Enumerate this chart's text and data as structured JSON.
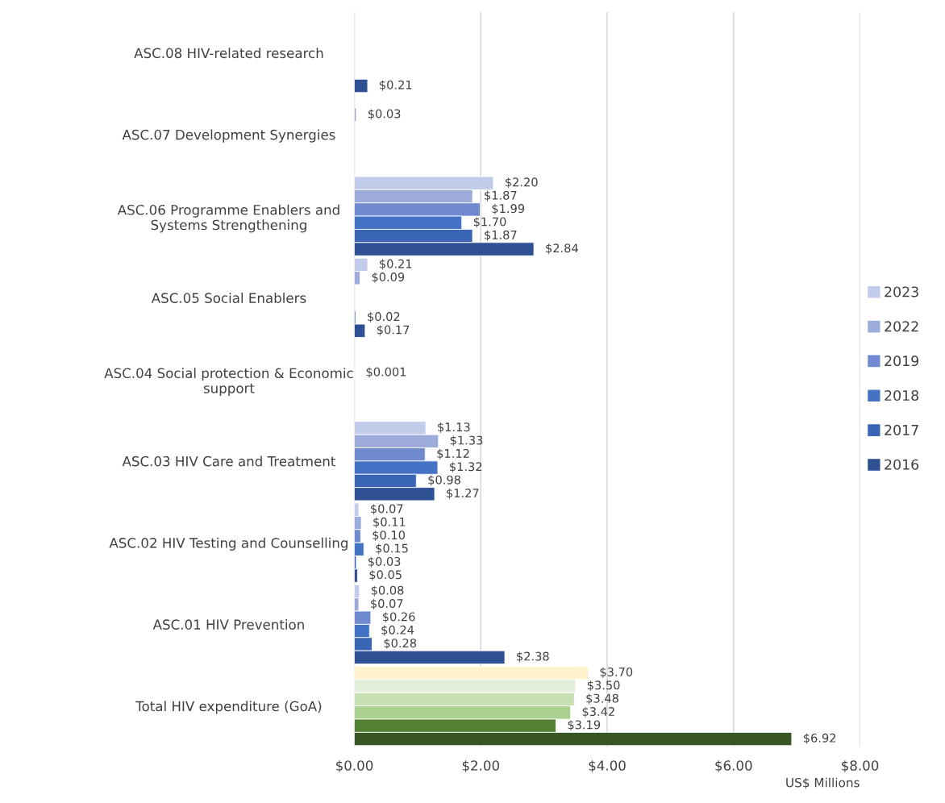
{
  "chart_data": {
    "type": "bar",
    "orientation": "horizontal",
    "xlabel": "US$ Millions",
    "categories": [
      "ASC.08 HIV-related research",
      "ASC.07 Development Synergies",
      "ASC.06 Programme Enablers and Systems Strengthening",
      "ASC.05 Social Enablers",
      "ASC.04 Social protection & Economic support",
      "ASC.03 HIV Care and Treatment",
      "ASC.02 HIV Testing and Counselling",
      "ASC.01 HIV Prevention",
      "Total HIV expenditure (GoA)"
    ],
    "series": [
      {
        "name": "2023",
        "color": "#c2cbe9",
        "colors": [
          "#c2cbe9",
          "#c2cbe9",
          "#c2cbe9",
          "#c2cbe9",
          "#c2cbe9",
          "#c2cbe9",
          "#c2cbe9",
          "#c2cbe9",
          "#fff2cc"
        ],
        "values": [
          null,
          null,
          2.2,
          0.21,
          null,
          1.13,
          0.07,
          0.08,
          3.7
        ],
        "value_labels": [
          null,
          null,
          "$2.20",
          "$0.21",
          null,
          "$1.13",
          "$0.07",
          "$0.08",
          "$3.70"
        ]
      },
      {
        "name": "2022",
        "color": "#9dabdb",
        "colors": [
          "#9dabdb",
          "#9dabdb",
          "#9dabdb",
          "#9dabdb",
          "#9dabdb",
          "#9dabdb",
          "#9dabdb",
          "#9dabdb",
          "#e2efda"
        ],
        "values": [
          null,
          0.03,
          1.87,
          0.09,
          null,
          1.33,
          0.11,
          0.07,
          3.5
        ],
        "value_labels": [
          null,
          "$0.03",
          "$1.87",
          "$0.09",
          null,
          "$1.33",
          "$0.11",
          "$0.07",
          "$3.50"
        ]
      },
      {
        "name": "2019",
        "color": "#6f8ad0",
        "colors": [
          "#6f8ad0",
          "#6f8ad0",
          "#6f8ad0",
          "#6f8ad0",
          "#6f8ad0",
          "#6f8ad0",
          "#6f8ad0",
          "#6f8ad0",
          "#c6e0b4"
        ],
        "values": [
          null,
          null,
          1.99,
          null,
          0.001,
          1.12,
          0.1,
          0.26,
          3.48
        ],
        "value_labels": [
          null,
          null,
          "$1.99",
          null,
          "$0.001",
          "$1.12",
          "$0.10",
          "$0.26",
          "$3.48"
        ]
      },
      {
        "name": "2018",
        "color": "#4472c4",
        "colors": [
          "#4472c4",
          "#4472c4",
          "#4472c4",
          "#4472c4",
          "#4472c4",
          "#4472c4",
          "#4472c4",
          "#4472c4",
          "#a9d08e"
        ],
        "values": [
          null,
          null,
          1.7,
          null,
          null,
          1.32,
          0.15,
          0.24,
          3.42
        ],
        "value_labels": [
          null,
          null,
          "$1.70",
          null,
          null,
          "$1.32",
          "$0.15",
          "$0.24",
          "$3.42"
        ]
      },
      {
        "name": "2017",
        "color": "#3a64b4",
        "colors": [
          "#3a64b4",
          "#3a64b4",
          "#3a64b4",
          "#3a64b4",
          "#3a64b4",
          "#3a64b4",
          "#3a64b4",
          "#3a64b4",
          "#548235"
        ],
        "values": [
          null,
          null,
          1.87,
          0.02,
          null,
          0.98,
          0.03,
          0.28,
          3.19
        ],
        "value_labels": [
          null,
          null,
          "$1.87",
          "$0.02",
          null,
          "$0.98",
          "$0.03",
          "$0.28",
          "$3.19"
        ]
      },
      {
        "name": "2016",
        "color": "#2f5093",
        "colors": [
          "#2f5093",
          "#2f5093",
          "#2f5093",
          "#2f5093",
          "#2f5093",
          "#2f5093",
          "#2f5093",
          "#2f5093",
          "#375623"
        ],
        "values": [
          0.21,
          null,
          2.84,
          0.17,
          null,
          1.27,
          0.05,
          2.38,
          6.92
        ],
        "value_labels": [
          "$0.21",
          null,
          "$2.84",
          "$0.17",
          null,
          "$1.27",
          "$0.05",
          "$2.38",
          "$6.92"
        ]
      }
    ],
    "xlim": [
      0,
      8
    ],
    "xticks": [
      {
        "value": 0,
        "label": "$0.00"
      },
      {
        "value": 2,
        "label": "$2.00"
      },
      {
        "value": 4,
        "label": "$4.00"
      },
      {
        "value": 6,
        "label": "$6.00"
      },
      {
        "value": 8,
        "label": "$8.00"
      }
    ],
    "grid": "x",
    "legend": "right"
  }
}
